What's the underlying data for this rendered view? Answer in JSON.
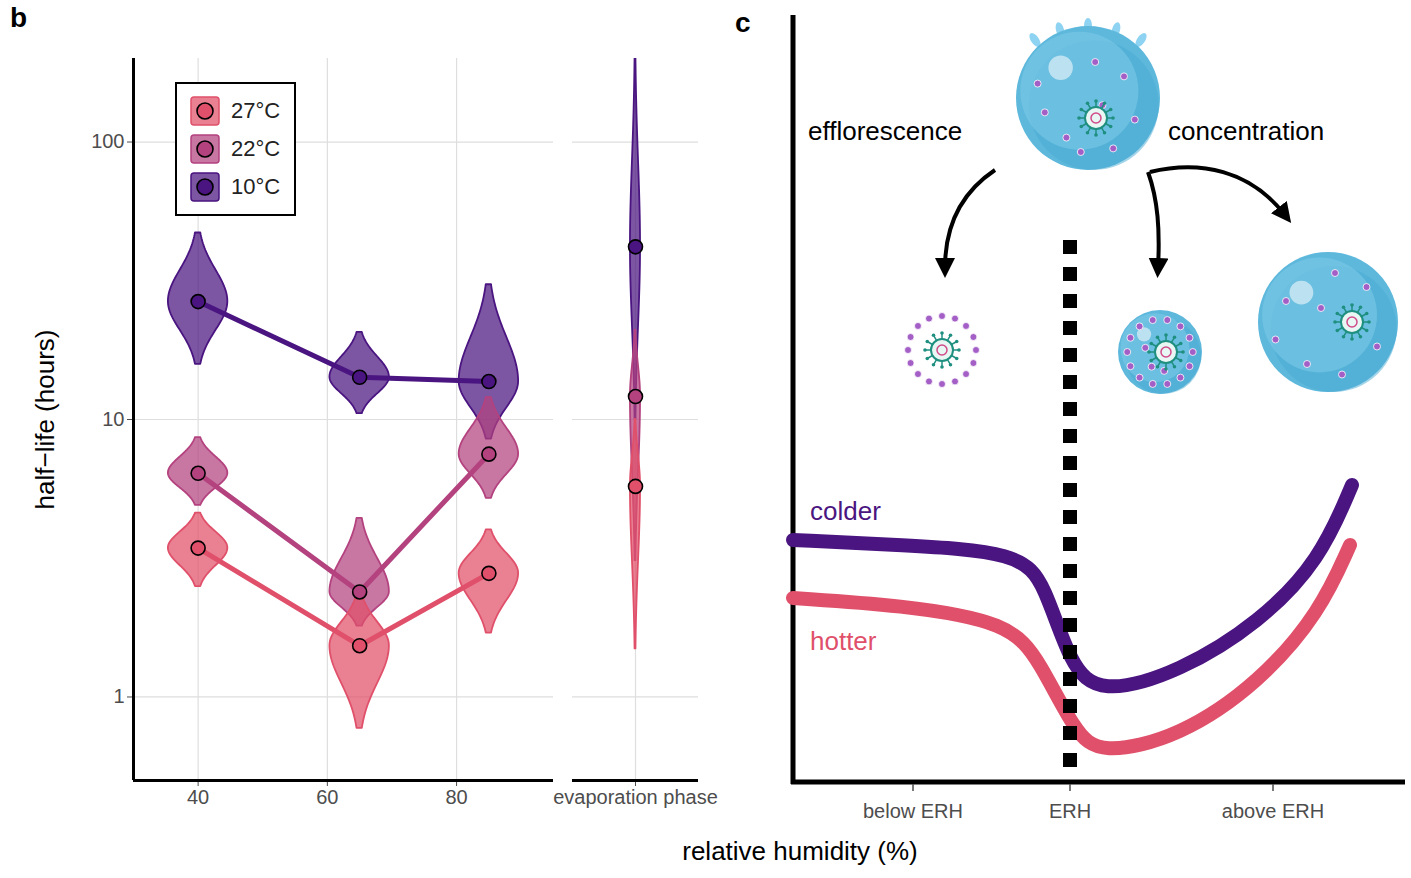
{
  "chart_data": [
    {
      "type": "violin",
      "title": "b",
      "xlabel": "relative humidity (%)",
      "ylabel": "half−life (hours)",
      "x": [
        40,
        65,
        85
      ],
      "xlim": [
        30,
        95
      ],
      "xticks": [
        40,
        60,
        80
      ],
      "ylim": [
        0.5,
        200
      ],
      "yticks": [
        1,
        10,
        100
      ],
      "log": "y",
      "grid": true,
      "legend": "top-left",
      "marker": "circle",
      "series": [
        {
          "name": "27°C",
          "color": "#e0506a",
          "values": [
            3.44,
            1.53,
            2.79
          ],
          "lower": [
            2.5,
            0.77,
            1.7
          ],
          "upper": [
            4.6,
            2.35,
            4.0
          ]
        },
        {
          "name": "22°C",
          "color": "#b3427f",
          "values": [
            6.4,
            2.39,
            7.5
          ],
          "lower": [
            4.9,
            1.8,
            5.2
          ],
          "upper": [
            8.6,
            4.4,
            12
          ]
        },
        {
          "name": "10°C",
          "color": "#4a1580",
          "values": [
            26.6,
            14.2,
            13.7
          ],
          "lower": [
            15.8,
            10.5,
            8.5
          ],
          "upper": [
            47,
            20.6,
            30.6
          ]
        }
      ]
    },
    {
      "type": "violin",
      "categories": [
        "evaporation phase"
      ],
      "ylim": [
        0.5,
        200
      ],
      "yticks": [
        1,
        10,
        100
      ],
      "log": "y",
      "grid": true,
      "tick_labels": "x",
      "marker": "circle",
      "series": [
        {
          "name": "27°C",
          "color": "#e0506a",
          "values": [
            5.74
          ],
          "lower": [
            1.49
          ],
          "upper": [
            10
          ]
        },
        {
          "name": "22°C",
          "color": "#b3427f",
          "values": [
            12.1
          ],
          "lower": [
            3.1
          ],
          "upper": [
            21
          ]
        },
        {
          "name": "10°C",
          "color": "#4a1580",
          "values": [
            41.9
          ],
          "lower": [
            10
          ],
          "upper": [
            200
          ]
        }
      ]
    }
  ],
  "panel_c": {
    "title": "c",
    "annotations": [
      "efflorescence",
      "concentration"
    ],
    "series": [
      {
        "name": "colder",
        "color": "#4a1580"
      },
      {
        "name": "hotter",
        "color": "#e0506a"
      }
    ],
    "x_labels": [
      "below ERH",
      "ERH",
      "above ERH"
    ]
  }
}
